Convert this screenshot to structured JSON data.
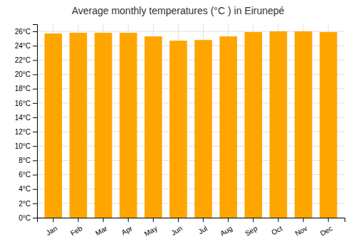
{
  "chart_data": {
    "type": "bar",
    "title": "Average monthly temperatures (°C ) in Eirunepé",
    "categories": [
      "Jan",
      "Feb",
      "Mar",
      "Apr",
      "May",
      "Jun",
      "Jul",
      "Aug",
      "Sep",
      "Oct",
      "Nov",
      "Dec"
    ],
    "values": [
      25.7,
      25.8,
      25.8,
      25.8,
      25.3,
      24.7,
      24.8,
      25.3,
      25.9,
      26.0,
      26.0,
      25.9
    ],
    "color": "#FFA500",
    "ylim": [
      0,
      27
    ],
    "yticks": [
      {
        "value": 0,
        "label": "0°C"
      },
      {
        "value": 2,
        "label": "2°C"
      },
      {
        "value": 4,
        "label": "4°C"
      },
      {
        "value": 6,
        "label": "6°C"
      },
      {
        "value": 8,
        "label": "8°C"
      },
      {
        "value": 10,
        "label": "10°C"
      },
      {
        "value": 12,
        "label": "12°C"
      },
      {
        "value": 14,
        "label": "14°C"
      },
      {
        "value": 16,
        "label": "16°C"
      },
      {
        "value": 18,
        "label": "18°C"
      },
      {
        "value": 20,
        "label": "20°C"
      },
      {
        "value": 22,
        "label": "22°C"
      },
      {
        "value": 24,
        "label": "24°C"
      },
      {
        "value": 26,
        "label": "26°C"
      }
    ],
    "grid": true
  }
}
